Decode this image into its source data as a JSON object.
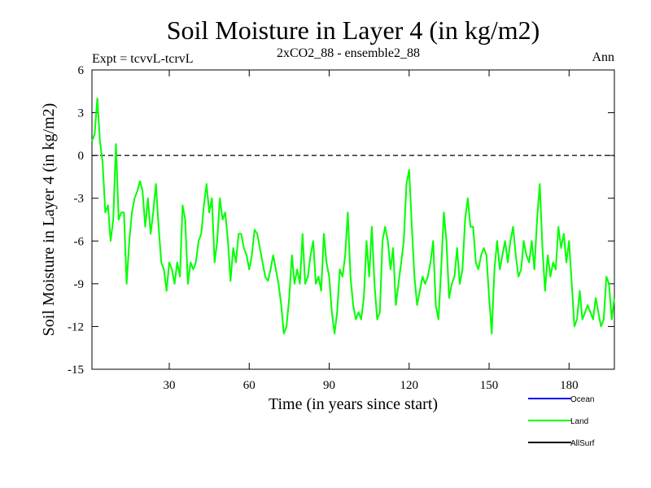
{
  "chart_data": {
    "type": "line",
    "title": "Soil Moisture in Layer 4 (in kg/m2)",
    "subtitle_left": "Expt = tcvvL-tcrvL",
    "subtitle_center": "2xCO2_88 - ensemble2_88",
    "subtitle_right": "Ann",
    "xlabel": "Time (in years since start)",
    "ylabel": "Soil Moisture in Layer 4 (in kg/m2)",
    "xlim": [
      1,
      197
    ],
    "ylim": [
      -15,
      6
    ],
    "xticks": [
      30,
      60,
      90,
      120,
      150,
      180
    ],
    "yticks": [
      -15,
      -12,
      -9,
      -6,
      -3,
      0,
      3,
      6
    ],
    "reference_line": {
      "y": 0,
      "style": "dashed"
    },
    "grid": false,
    "legend_position": "bottom-right",
    "legend": [
      {
        "name": "Ocean",
        "color": "#0000ff"
      },
      {
        "name": "Land",
        "color": "#00ff00"
      },
      {
        "name": "AllSurf",
        "color": "#000000"
      }
    ],
    "series": [
      {
        "name": "Land",
        "color": "#00ff00",
        "x": [
          1,
          2,
          3,
          4,
          5,
          6,
          7,
          8,
          9,
          10,
          11,
          12,
          13,
          14,
          15,
          16,
          17,
          18,
          19,
          20,
          21,
          22,
          23,
          24,
          25,
          26,
          27,
          28,
          29,
          30,
          31,
          32,
          33,
          34,
          35,
          36,
          37,
          38,
          39,
          40,
          41,
          42,
          43,
          44,
          45,
          46,
          47,
          48,
          49,
          50,
          51,
          52,
          53,
          54,
          55,
          56,
          57,
          58,
          59,
          60,
          61,
          62,
          63,
          64,
          65,
          66,
          67,
          68,
          69,
          70,
          71,
          72,
          73,
          74,
          75,
          76,
          77,
          78,
          79,
          80,
          81,
          82,
          83,
          84,
          85,
          86,
          87,
          88,
          89,
          90,
          91,
          92,
          93,
          94,
          95,
          96,
          97,
          98,
          99,
          100,
          101,
          102,
          103,
          104,
          105,
          106,
          107,
          108,
          109,
          110,
          111,
          112,
          113,
          114,
          115,
          116,
          117,
          118,
          119,
          120,
          121,
          122,
          123,
          124,
          125,
          126,
          127,
          128,
          129,
          130,
          131,
          132,
          133,
          134,
          135,
          136,
          137,
          138,
          139,
          140,
          141,
          142,
          143,
          144,
          145,
          146,
          147,
          148,
          149,
          150,
          151,
          152,
          153,
          154,
          155,
          156,
          157,
          158,
          159,
          160,
          161,
          162,
          163,
          164,
          165,
          166,
          167,
          168,
          169,
          170,
          171,
          172,
          173,
          174,
          175,
          176,
          177,
          178,
          179,
          180,
          181,
          182,
          183,
          184,
          185,
          186,
          187,
          188,
          189,
          190,
          191,
          192,
          193,
          194,
          195,
          196,
          197
        ],
        "y": [
          1.0,
          1.5,
          4.0,
          1.0,
          -0.5,
          -4.0,
          -3.5,
          -6.0,
          -4.5,
          0.8,
          -4.5,
          -4.0,
          -4.0,
          -9.0,
          -6.0,
          -4.0,
          -3.0,
          -2.5,
          -1.8,
          -2.5,
          -5.0,
          -3.0,
          -5.5,
          -4.0,
          -2.0,
          -5.0,
          -7.5,
          -8.0,
          -9.5,
          -7.5,
          -8.0,
          -9.0,
          -7.5,
          -8.5,
          -3.5,
          -4.5,
          -9.0,
          -7.5,
          -8.0,
          -7.5,
          -6.0,
          -5.5,
          -3.5,
          -2.0,
          -4.0,
          -3.0,
          -7.5,
          -6.0,
          -3.0,
          -4.5,
          -4.0,
          -6.0,
          -8.8,
          -6.5,
          -7.5,
          -5.5,
          -5.5,
          -6.5,
          -7.0,
          -8.0,
          -7.0,
          -5.2,
          -5.5,
          -6.5,
          -7.5,
          -8.5,
          -8.8,
          -8.0,
          -7.0,
          -8.0,
          -9.0,
          -10.5,
          -12.5,
          -12.0,
          -10.0,
          -7.0,
          -9.0,
          -8.0,
          -9.0,
          -5.5,
          -9.0,
          -8.5,
          -7.0,
          -6.0,
          -9.0,
          -8.5,
          -9.5,
          -5.5,
          -7.5,
          -8.5,
          -11.0,
          -12.5,
          -11.0,
          -8.0,
          -8.5,
          -7.0,
          -4.0,
          -8.5,
          -10.5,
          -11.5,
          -11.0,
          -11.5,
          -10.0,
          -6.0,
          -8.5,
          -5.0,
          -9.0,
          -11.5,
          -11.0,
          -6.0,
          -5.0,
          -6.0,
          -8.0,
          -6.5,
          -10.5,
          -9.0,
          -7.5,
          -6.0,
          -2.0,
          -1.0,
          -5.0,
          -8.5,
          -10.5,
          -9.5,
          -8.5,
          -9.0,
          -8.5,
          -7.5,
          -6.0,
          -10.5,
          -11.5,
          -8.0,
          -4.0,
          -6.0,
          -10.0,
          -9.0,
          -8.5,
          -6.5,
          -9.0,
          -8.0,
          -4.5,
          -3.0,
          -5.0,
          -5.0,
          -7.5,
          -8.0,
          -7.0,
          -6.5,
          -7.0,
          -10.0,
          -12.5,
          -8.0,
          -6.0,
          -8.0,
          -7.0,
          -6.0,
          -7.5,
          -6.0,
          -5.0,
          -7.0,
          -8.5,
          -8.0,
          -6.0,
          -7.0,
          -7.5,
          -6.0,
          -8.0,
          -4.5,
          -2.0,
          -6.5,
          -9.5,
          -7.0,
          -8.5,
          -7.5,
          -8.0,
          -5.0,
          -6.5,
          -5.5,
          -7.5,
          -6.0,
          -9.0,
          -12.0,
          -11.5,
          -9.5,
          -11.5,
          -11.0,
          -10.5,
          -11.0,
          -11.5,
          -10.0,
          -11.0,
          -12.0,
          -11.5,
          -8.5,
          -9.0,
          -11.5,
          -10.0
        ]
      }
    ]
  }
}
